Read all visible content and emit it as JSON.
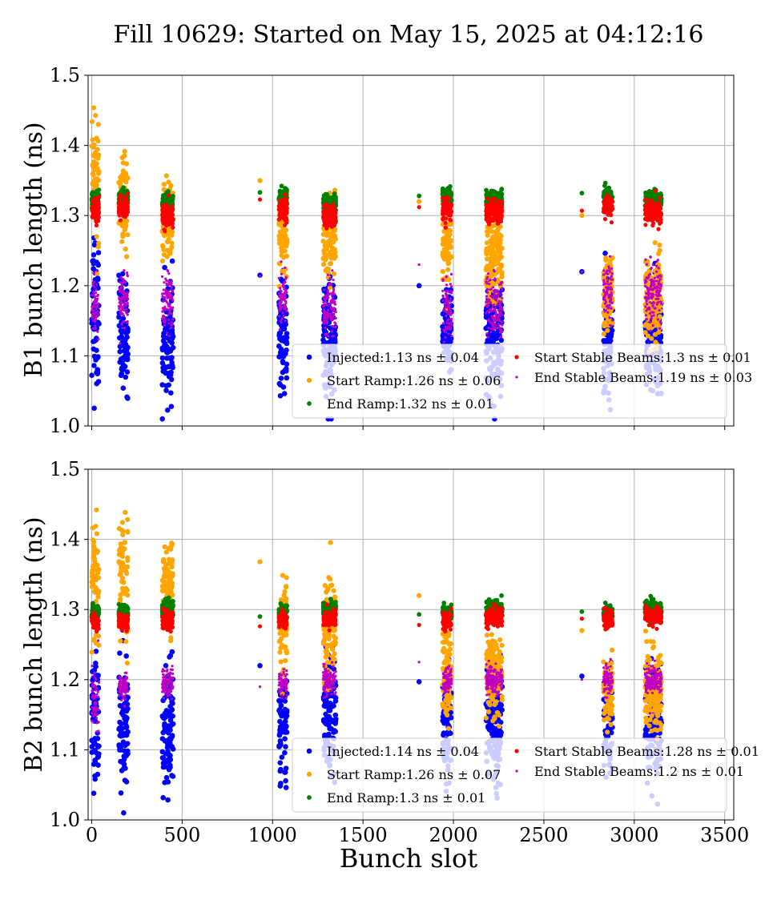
{
  "title": "Fill 10629: Started on May 15, 2025 at 04:12:16",
  "chart_data": [
    {
      "type": "scatter",
      "ylabel": "B1 bunch length (ns)",
      "xlabel": "",
      "xlim": [
        -20,
        3550
      ],
      "ylim": [
        1.0,
        1.5
      ],
      "xticks": [
        0,
        500,
        1000,
        1500,
        2000,
        2500,
        3000,
        3500
      ],
      "yticks": [
        1.0,
        1.1,
        1.2,
        1.3,
        1.4,
        1.5
      ],
      "grid": true,
      "legend_position": "lower-right",
      "series": [
        {
          "name": "Injected",
          "label": "Injected:1.13 ns ± 0.04",
          "color": "#0000ff",
          "trains": [
            [
              0,
              40,
              1.17,
              0.06
            ],
            [
              150,
              50,
              1.13,
              0.04
            ],
            [
              390,
              60,
              1.12,
              0.04
            ],
            [
              930,
              1,
              1.215,
              0
            ],
            [
              1035,
              45,
              1.14,
              0.04
            ],
            [
              1280,
              70,
              1.13,
              0.04
            ],
            [
              1810,
              1,
              1.2,
              0
            ],
            [
              1940,
              50,
              1.14,
              0.03
            ],
            [
              2180,
              90,
              1.13,
              0.04
            ],
            [
              2710,
              1,
              1.22,
              0
            ],
            [
              2830,
              50,
              1.12,
              0.04
            ],
            [
              3060,
              90,
              1.13,
              0.04
            ]
          ]
        },
        {
          "name": "Start Ramp",
          "label": "Start Ramp:1.26 ns ± 0.06",
          "color": "#ffa500",
          "trains": [
            [
              0,
              40,
              1.36,
              0.05
            ],
            [
              150,
              50,
              1.32,
              0.03
            ],
            [
              390,
              60,
              1.29,
              0.03
            ],
            [
              930,
              1,
              1.35,
              0
            ],
            [
              1035,
              45,
              1.27,
              0.03
            ],
            [
              1280,
              70,
              1.27,
              0.03
            ],
            [
              1810,
              1,
              1.32,
              0
            ],
            [
              1940,
              50,
              1.26,
              0.03
            ],
            [
              2180,
              90,
              1.24,
              0.03
            ],
            [
              2710,
              1,
              1.3,
              0
            ],
            [
              2830,
              50,
              1.18,
              0.03
            ],
            [
              3060,
              90,
              1.18,
              0.03
            ]
          ]
        },
        {
          "name": "End Ramp",
          "label": "End Ramp:1.32 ns ± 0.01",
          "color": "#008000",
          "trains": [
            [
              0,
              40,
              1.325,
              0.006
            ],
            [
              150,
              50,
              1.325,
              0.006
            ],
            [
              390,
              60,
              1.32,
              0.006
            ],
            [
              930,
              1,
              1.333,
              0
            ],
            [
              1035,
              45,
              1.325,
              0.006
            ],
            [
              1280,
              70,
              1.318,
              0.006
            ],
            [
              1810,
              1,
              1.328,
              0
            ],
            [
              1940,
              50,
              1.327,
              0.006
            ],
            [
              2180,
              90,
              1.322,
              0.006
            ],
            [
              2710,
              1,
              1.332,
              0
            ],
            [
              2830,
              50,
              1.33,
              0.006
            ],
            [
              3060,
              90,
              1.322,
              0.006
            ]
          ]
        },
        {
          "name": "Start Stable Beams",
          "label": "Start Stable Beams:1.3 ns ± 0.01",
          "color": "#ff0000",
          "trains": [
            [
              0,
              40,
              1.31,
              0.008
            ],
            [
              150,
              50,
              1.31,
              0.008
            ],
            [
              390,
              60,
              1.3,
              0.008
            ],
            [
              930,
              1,
              1.323,
              0
            ],
            [
              1035,
              45,
              1.31,
              0.008
            ],
            [
              1280,
              70,
              1.3,
              0.008
            ],
            [
              1810,
              1,
              1.312,
              0
            ],
            [
              1940,
              50,
              1.31,
              0.008
            ],
            [
              2180,
              90,
              1.305,
              0.008
            ],
            [
              2710,
              1,
              1.307,
              0
            ],
            [
              2830,
              50,
              1.315,
              0.008
            ],
            [
              3060,
              90,
              1.305,
              0.008
            ]
          ]
        },
        {
          "name": "End Stable Beams",
          "label": "End Stable Beams:1.19 ns ± 0.03",
          "color": "#c000c0",
          "trains": [
            [
              0,
              40,
              1.17,
              0.02
            ],
            [
              150,
              50,
              1.18,
              0.02
            ],
            [
              390,
              60,
              1.18,
              0.02
            ],
            [
              930,
              1,
              1.213,
              0
            ],
            [
              1035,
              45,
              1.18,
              0.02
            ],
            [
              1280,
              70,
              1.17,
              0.02
            ],
            [
              1810,
              1,
              1.23,
              0
            ],
            [
              1940,
              50,
              1.17,
              0.02
            ],
            [
              2180,
              90,
              1.17,
              0.02
            ],
            [
              2710,
              1,
              1.22,
              0
            ],
            [
              2830,
              50,
              1.19,
              0.02
            ],
            [
              3060,
              90,
              1.19,
              0.02
            ]
          ]
        }
      ]
    },
    {
      "type": "scatter",
      "ylabel": "B2 bunch length (ns)",
      "xlabel": "Bunch slot",
      "xlim": [
        -20,
        3550
      ],
      "ylim": [
        1.0,
        1.5
      ],
      "xticks": [
        0,
        500,
        1000,
        1500,
        2000,
        2500,
        3000,
        3500
      ],
      "yticks": [
        1.0,
        1.1,
        1.2,
        1.3,
        1.4,
        1.5
      ],
      "grid": true,
      "legend_position": "lower-right",
      "series": [
        {
          "name": "Injected",
          "label": "Injected:1.14 ns ± 0.04",
          "color": "#0000ff",
          "trains": [
            [
              0,
              40,
              1.15,
              0.05
            ],
            [
              150,
              50,
              1.14,
              0.05
            ],
            [
              390,
              60,
              1.13,
              0.04
            ],
            [
              930,
              1,
              1.22,
              0
            ],
            [
              1035,
              45,
              1.13,
              0.04
            ],
            [
              1280,
              70,
              1.15,
              0.04
            ],
            [
              1810,
              1,
              1.197,
              0
            ],
            [
              1940,
              50,
              1.14,
              0.04
            ],
            [
              2180,
              90,
              1.14,
              0.04
            ],
            [
              2710,
              1,
              1.205,
              0
            ],
            [
              2830,
              50,
              1.14,
              0.04
            ],
            [
              3060,
              90,
              1.14,
              0.04
            ]
          ]
        },
        {
          "name": "Start Ramp",
          "label": "Start Ramp:1.26 ns ± 0.07",
          "color": "#ffa500",
          "trains": [
            [
              0,
              40,
              1.34,
              0.05
            ],
            [
              150,
              50,
              1.34,
              0.04
            ],
            [
              390,
              60,
              1.33,
              0.03
            ],
            [
              930,
              1,
              1.368,
              0
            ],
            [
              1035,
              45,
              1.27,
              0.03
            ],
            [
              1280,
              70,
              1.27,
              0.04
            ],
            [
              1810,
              1,
              1.32,
              0
            ],
            [
              1940,
              50,
              1.21,
              0.03
            ],
            [
              2180,
              90,
              1.21,
              0.03
            ],
            [
              2710,
              1,
              1.27,
              0
            ],
            [
              2830,
              50,
              1.19,
              0.03
            ],
            [
              3060,
              90,
              1.18,
              0.03
            ]
          ]
        },
        {
          "name": "End Ramp",
          "label": "End Ramp:1.3 ns ± 0.01",
          "color": "#008000",
          "trains": [
            [
              0,
              40,
              1.295,
              0.006
            ],
            [
              150,
              50,
              1.295,
              0.006
            ],
            [
              390,
              60,
              1.3,
              0.006
            ],
            [
              930,
              1,
              1.29,
              0
            ],
            [
              1035,
              45,
              1.295,
              0.006
            ],
            [
              1280,
              70,
              1.3,
              0.006
            ],
            [
              1810,
              1,
              1.293,
              0
            ],
            [
              1940,
              50,
              1.295,
              0.006
            ],
            [
              2180,
              90,
              1.3,
              0.006
            ],
            [
              2710,
              1,
              1.297,
              0
            ],
            [
              2830,
              50,
              1.294,
              0.006
            ],
            [
              3060,
              90,
              1.3,
              0.006
            ]
          ]
        },
        {
          "name": "Start Stable Beams",
          "label": "Start Stable Beams:1.28 ns ± 0.01",
          "color": "#ff0000",
          "trains": [
            [
              0,
              40,
              1.283,
              0.006
            ],
            [
              150,
              50,
              1.283,
              0.006
            ],
            [
              390,
              60,
              1.285,
              0.006
            ],
            [
              930,
              1,
              1.276,
              0
            ],
            [
              1035,
              45,
              1.285,
              0.006
            ],
            [
              1280,
              70,
              1.287,
              0.006
            ],
            [
              1810,
              1,
              1.278,
              0
            ],
            [
              1940,
              50,
              1.285,
              0.006
            ],
            [
              2180,
              90,
              1.288,
              0.006
            ],
            [
              2710,
              1,
              1.287,
              0
            ],
            [
              2830,
              50,
              1.285,
              0.006
            ],
            [
              3060,
              90,
              1.29,
              0.006
            ]
          ]
        },
        {
          "name": "End Stable Beams",
          "label": "End Stable Beams:1.2 ns ± 0.01",
          "color": "#c000c0",
          "trains": [
            [
              0,
              40,
              1.17,
              0.02
            ],
            [
              150,
              50,
              1.19,
              0.01
            ],
            [
              390,
              60,
              1.195,
              0.01
            ],
            [
              930,
              1,
              1.19,
              0
            ],
            [
              1035,
              45,
              1.195,
              0.01
            ],
            [
              1280,
              70,
              1.2,
              0.01
            ],
            [
              1810,
              1,
              1.225,
              0
            ],
            [
              1940,
              50,
              1.2,
              0.01
            ],
            [
              2180,
              90,
              1.2,
              0.01
            ],
            [
              2710,
              1,
              1.2,
              0
            ],
            [
              2830,
              50,
              1.2,
              0.01
            ],
            [
              3060,
              90,
              1.2,
              0.01
            ]
          ]
        }
      ]
    }
  ]
}
